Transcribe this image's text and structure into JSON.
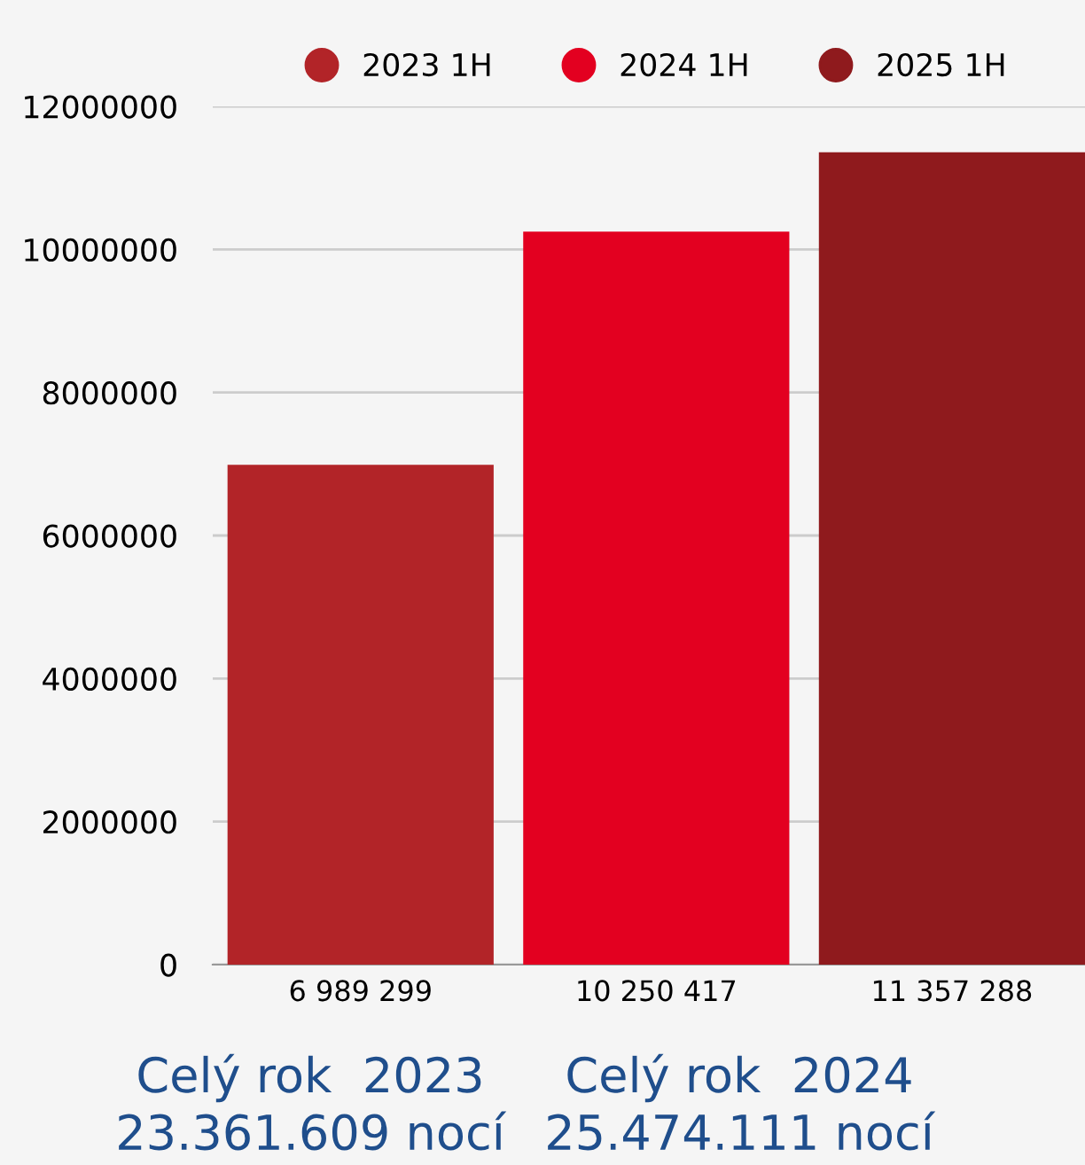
{
  "chart_data": {
    "type": "bar",
    "categories": [
      null,
      null,
      null
    ],
    "stacked": true,
    "series": [
      {
        "name": "2023 1H",
        "color": "#b22428",
        "values": [
          6989299,
          null,
          null
        ],
        "value_labels": [
          "6 989 299",
          null,
          null
        ]
      },
      {
        "name": "2024 1H",
        "color": "#e30020",
        "values": [
          null,
          10250417,
          null
        ],
        "value_labels": [
          null,
          "10 250 417",
          null
        ]
      },
      {
        "name": "2025 1H",
        "color": "#8f1a1d",
        "values": [
          null,
          null,
          11357288
        ],
        "value_labels": [
          null,
          null,
          "11 357 288"
        ]
      }
    ],
    "ylim": [
      0,
      12000000
    ],
    "yticks": [
      0,
      2000000,
      4000000,
      6000000,
      8000000,
      10000000,
      12000000
    ],
    "grid": "y",
    "legend": "top",
    "annotations": [
      "Celý rok  2023\n23.361.609 nocí",
      "Celý rok  2024\n25.474.111 nocí"
    ]
  }
}
